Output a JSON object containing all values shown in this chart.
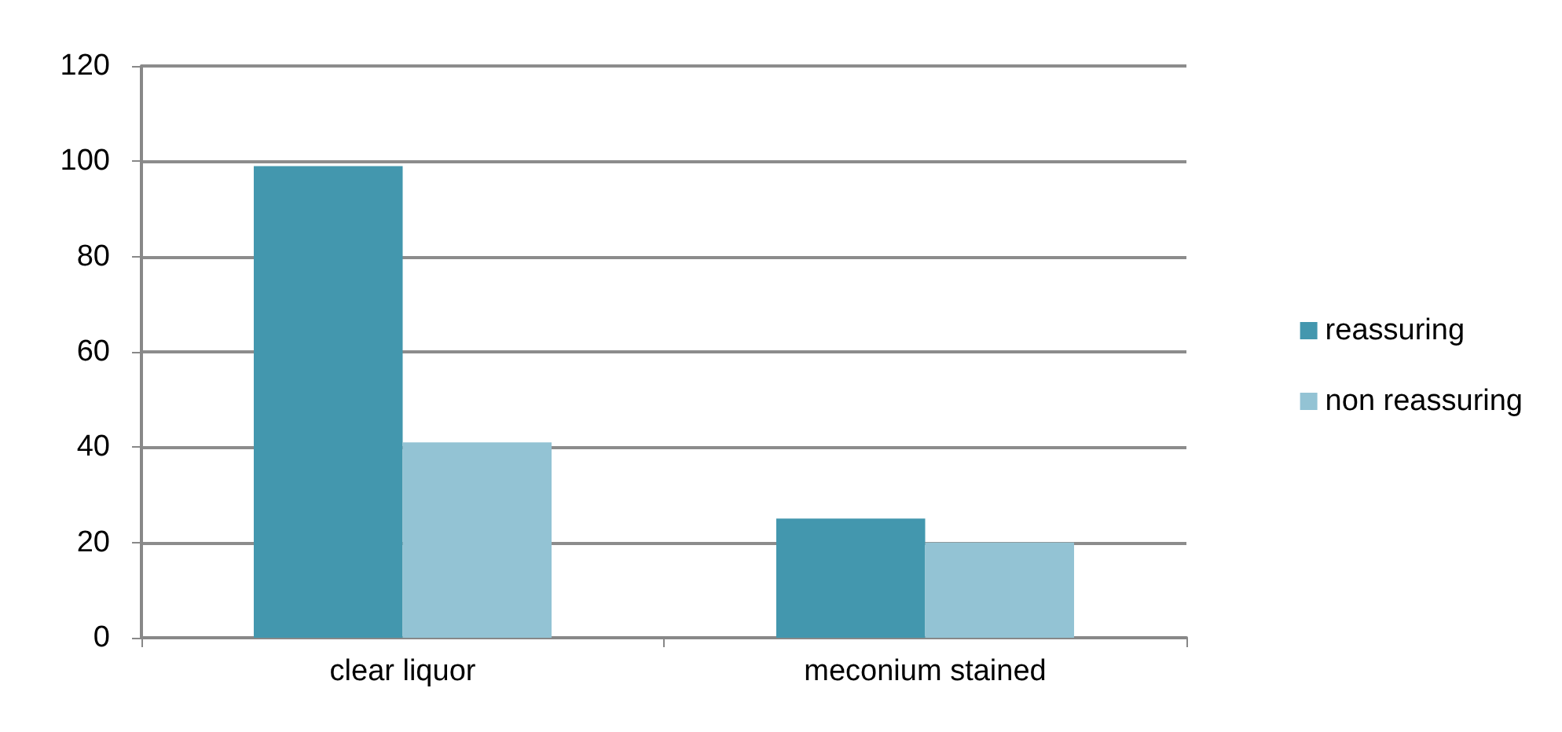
{
  "chart_data": {
    "type": "bar",
    "categories": [
      "clear liquor",
      "meconium stained"
    ],
    "series": [
      {
        "name": "reassuring",
        "color": "#4397ae",
        "values": [
          99,
          25
        ]
      },
      {
        "name": "non reassuring",
        "color": "#93c3d4",
        "values": [
          41,
          20
        ]
      }
    ],
    "ylim": [
      0,
      120
    ],
    "yticks": [
      0,
      20,
      40,
      60,
      80,
      100,
      120
    ],
    "grid": "y",
    "legend": "right"
  }
}
